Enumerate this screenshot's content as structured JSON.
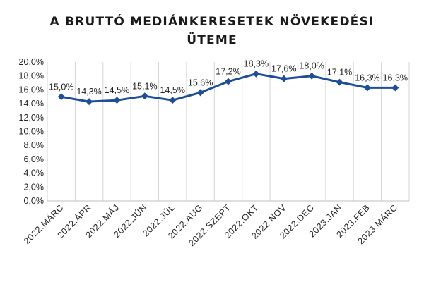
{
  "chart_data": {
    "type": "line",
    "title_lines": [
      "A BRUTTÓ MEDIÁNKERESETEK NÖVEKEDÉSI",
      "ÜTEME"
    ],
    "categories": [
      "2022.MÁRC",
      "2022.ÁPR",
      "2022.MÁJ",
      "2022.JÚN",
      "2022.JÚL",
      "2022.AUG",
      "2022.SZEPT",
      "2022.OKT",
      "2022.NOV",
      "2022.DEC",
      "2023.JAN",
      "2023.FEB",
      "2023.MÁRC"
    ],
    "values": [
      15.0,
      14.3,
      14.5,
      15.1,
      14.5,
      15.6,
      17.2,
      18.3,
      17.6,
      18.0,
      17.1,
      16.3,
      16.3
    ],
    "data_labels": [
      "15,0%",
      "14,3%",
      "14,5%",
      "15,1%",
      "14,5%",
      "15,6%",
      "17,2%",
      "18,3%",
      "17,6%",
      "18,0%",
      "17,1%",
      "16,3%",
      "16,3%"
    ],
    "ylim": [
      0,
      20
    ],
    "yticks": [
      0,
      2,
      4,
      6,
      8,
      10,
      12,
      14,
      16,
      18,
      20
    ],
    "ytick_labels": [
      "0,0%",
      "2,0%",
      "4,0%",
      "6,0%",
      "8,0%",
      "10,0%",
      "12,0%",
      "14,0%",
      "16,0%",
      "18,0%",
      "20,0%"
    ],
    "grid": "vertical",
    "legend": "none",
    "line_color": "#1f4e99",
    "grid_color": "#d4d4d4"
  }
}
